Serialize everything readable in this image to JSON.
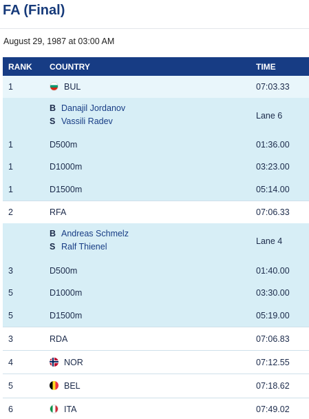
{
  "page": {
    "title": "FA (Final)",
    "date": "August 29, 1987 at 03:00 AM"
  },
  "table": {
    "headers": {
      "rank": "RANK",
      "country": "COUNTRY",
      "time": "TIME"
    },
    "entries": [
      {
        "rank": "1",
        "country": "BUL",
        "flag": "bulgaria-flag-icon",
        "time": "07:03.33",
        "crew": [
          {
            "pos": "B",
            "name": "Danajil Jordanov"
          },
          {
            "pos": "S",
            "name": "Vassili Radev"
          }
        ],
        "lane": "Lane 6",
        "splits": [
          {
            "rank": "1",
            "distance": "D500m",
            "time": "01:36.00"
          },
          {
            "rank": "1",
            "distance": "D1000m",
            "time": "03:23.00"
          },
          {
            "rank": "1",
            "distance": "D1500m",
            "time": "05:14.00"
          }
        ]
      },
      {
        "rank": "2",
        "country": "RFA",
        "flag": "",
        "time": "07:06.33",
        "crew": [
          {
            "pos": "B",
            "name": "Andreas Schmelz"
          },
          {
            "pos": "S",
            "name": "Ralf Thienel"
          }
        ],
        "lane": "Lane 4",
        "splits": [
          {
            "rank": "3",
            "distance": "D500m",
            "time": "01:40.00"
          },
          {
            "rank": "5",
            "distance": "D1000m",
            "time": "03:30.00"
          },
          {
            "rank": "5",
            "distance": "D1500m",
            "time": "05:19.00"
          }
        ]
      },
      {
        "rank": "3",
        "country": "RDA",
        "flag": "",
        "time": "07:06.83"
      },
      {
        "rank": "4",
        "country": "NOR",
        "flag": "norway-flag-icon",
        "time": "07:12.55"
      },
      {
        "rank": "5",
        "country": "BEL",
        "flag": "belgium-flag-icon",
        "time": "07:18.62"
      },
      {
        "rank": "6",
        "country": "ITA",
        "flag": "italy-flag-icon",
        "time": "07:49.02"
      }
    ]
  }
}
